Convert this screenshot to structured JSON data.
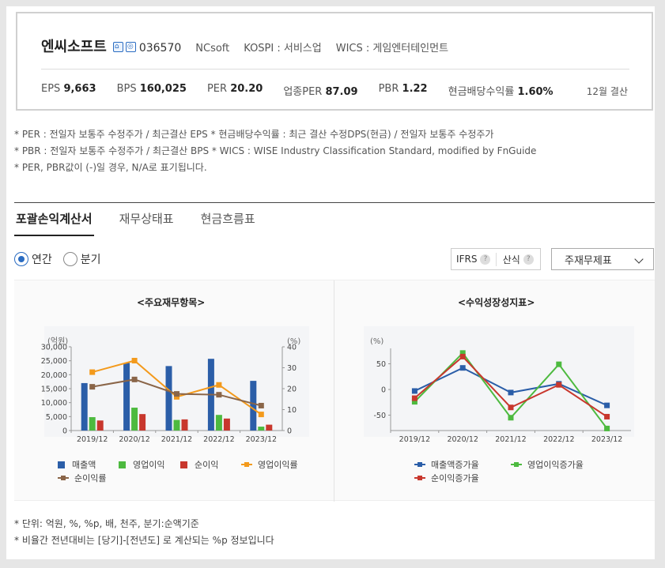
{
  "company": {
    "name": "엔씨소프트",
    "code": "036570",
    "name_en": "NCsoft",
    "market": "KOSPI : 서비스업",
    "wics": "WICS : 게임엔터테인먼트"
  },
  "metrics": {
    "eps_label": "EPS",
    "eps": "9,663",
    "bps_label": "BPS",
    "bps": "160,025",
    "per_label": "PER",
    "per": "20.20",
    "ind_per_label": "업종PER",
    "ind_per": "87.09",
    "pbr_label": "PBR",
    "pbr": "1.22",
    "div_label": "현금배당수익률",
    "div": "1.60%",
    "fiscal": "12월 결산"
  },
  "notes": [
    "* PER : 전일자 보통주 수정주가 / 최근결산 EPS * 현금배당수익률 : 최근 결산 수정DPS(현금) / 전일자 보통주 수정주가",
    "* PBR : 전일자 보통주 수정주가 / 최근결산 BPS * WICS : WISE Industry Classification Standard, modified by FnGuide",
    "* PER, PBR값이 (-)일 경우, N/A로 표기됩니다."
  ],
  "tabs": [
    "포괄손익계산서",
    "재무상태표",
    "현금흐름표"
  ],
  "periods": {
    "annual": "연간",
    "quarter": "분기"
  },
  "toggles": {
    "ifrs": "IFRS",
    "calc": "산식",
    "help": "?"
  },
  "select": {
    "value": "주재무제표"
  },
  "chart_data": [
    {
      "type": "bar",
      "title": "<주요재무항목>",
      "y_left_unit": "(억원)",
      "y_right_unit": "(%)",
      "y_left_ticks": [
        "30,000",
        "25,000",
        "20,000",
        "15,000",
        "10,000",
        "5,000",
        "0"
      ],
      "y_right_ticks": [
        "40",
        "30",
        "20",
        "10",
        "0"
      ],
      "ylim_left": [
        0,
        30000
      ],
      "ylim_right": [
        0,
        40
      ],
      "categories": [
        "2019/12",
        "2020/12",
        "2021/12",
        "2022/12",
        "2023/12"
      ],
      "series": [
        {
          "name": "매출액",
          "kind": "bar",
          "axis": "left",
          "color": "#2b5ea8",
          "values": [
            17000,
            24200,
            23100,
            25700,
            17800
          ]
        },
        {
          "name": "영업이익",
          "kind": "bar",
          "axis": "left",
          "color": "#4dba3f",
          "values": [
            4800,
            8200,
            3800,
            5600,
            1400
          ]
        },
        {
          "name": "순이익",
          "kind": "bar",
          "axis": "left",
          "color": "#c8372d",
          "values": [
            3600,
            5900,
            4000,
            4300,
            2100
          ]
        },
        {
          "name": "영업이익률",
          "kind": "line",
          "axis": "right",
          "color": "#f39a1c",
          "values": [
            27.9,
            33.4,
            16.1,
            21.8,
            7.7
          ]
        },
        {
          "name": "순이익률",
          "kind": "line",
          "axis": "right",
          "color": "#8a6548",
          "values": [
            20.9,
            24.4,
            17.5,
            17.1,
            11.9
          ]
        }
      ]
    },
    {
      "type": "line",
      "title": "<수익성장성지표>",
      "y_unit": "(%)",
      "y_ticks": [
        "50",
        "0",
        "-50"
      ],
      "ylim": [
        -80,
        80
      ],
      "categories": [
        "2019/12",
        "2020/12",
        "2021/12",
        "2022/12",
        "2023/12"
      ],
      "series": [
        {
          "name": "매출액증가율",
          "color": "#2b5ea8",
          "values": [
            -3,
            42,
            -6,
            11,
            -31
          ]
        },
        {
          "name": "영업이익증가율",
          "color": "#4dba3f",
          "values": [
            -24,
            71,
            -55,
            49,
            -76
          ]
        },
        {
          "name": "순이익증가율",
          "color": "#c8372d",
          "values": [
            -17,
            64,
            -35,
            9,
            -53
          ]
        }
      ]
    }
  ],
  "footnotes": [
    "* 단위: 억원, %, %p, 배, 천주, 분기:순액기준",
    "* 비율간 전년대비는 [당기]-[전년도] 로 계산되는 %p 정보입니다"
  ]
}
